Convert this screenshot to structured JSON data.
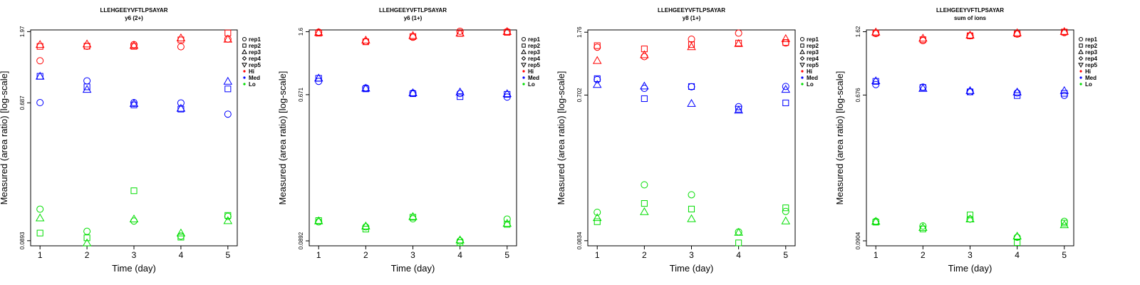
{
  "chart_data": [
    {
      "type": "scatter",
      "title": "LLEHGEEYVFTLPSAYAR",
      "subtitle": "y6 (2+)",
      "xlabel": "Time (day)",
      "ylabel": "Measured (area ratio) [log-scale]",
      "x_ticks": [
        "1",
        "2",
        "3",
        "4",
        "5"
      ],
      "y_ticks": [
        {
          "value": 0.0893,
          "label": "0.0893"
        },
        {
          "value": 0.687,
          "label": "0.687"
        },
        {
          "value": 1.97,
          "label": "1.97"
        }
      ],
      "ylim": [
        0.0828,
        2.02
      ],
      "log_scale": true,
      "legend": [
        {
          "label": "rep1",
          "symbol": "circle"
        },
        {
          "label": "rep2",
          "symbol": "square"
        },
        {
          "label": "rep3",
          "symbol": "triangle-up"
        },
        {
          "label": "rep4",
          "symbol": "diamond"
        },
        {
          "label": "rep5",
          "symbol": "triangle-down"
        },
        {
          "label": "Hi",
          "color": "#ff0000"
        },
        {
          "label": "Med",
          "color": "#0000ff"
        },
        {
          "label": "Lo",
          "color": "#00dd00"
        }
      ],
      "series": [
        {
          "name": "Hi rep1",
          "group": "Hi",
          "rep": "rep1",
          "x": [
            1,
            2,
            3,
            4,
            5
          ],
          "y": [
            1.28,
            1.585,
            1.626,
            1.575,
            1.764
          ]
        },
        {
          "name": "Hi rep2",
          "group": "Hi",
          "rep": "rep2",
          "x": [
            1,
            2,
            3,
            4,
            5
          ],
          "y": [
            1.583,
            1.588,
            1.584,
            1.743,
            1.931
          ]
        },
        {
          "name": "Hi rep3",
          "group": "Hi",
          "rep": "rep3",
          "x": [
            1,
            2,
            3,
            4,
            5
          ],
          "y": [
            1.626,
            1.64,
            1.607,
            1.793,
            1.76
          ]
        },
        {
          "name": "Med rep1",
          "group": "Med",
          "rep": "rep1",
          "x": [
            1,
            2,
            3,
            4,
            5
          ],
          "y": [
            0.689,
            0.951,
            0.689,
            0.686,
            0.581
          ]
        },
        {
          "name": "Med rep2",
          "group": "Med",
          "rep": "rep2",
          "x": [
            1,
            2,
            3,
            4,
            5
          ],
          "y": [
            1.017,
            0.87,
            0.666,
            0.626,
            0.844
          ]
        },
        {
          "name": "Med rep3",
          "group": "Med",
          "rep": "rep3",
          "x": [
            1,
            2,
            3,
            4,
            5
          ],
          "y": [
            1.017,
            0.837,
            0.68,
            0.633,
            0.944
          ]
        },
        {
          "name": "Lo rep1",
          "group": "Lo",
          "rep": "rep1",
          "x": [
            1,
            2,
            3,
            4,
            5
          ],
          "y": [
            0.1424,
            0.1026,
            0.1195,
            0.0957,
            0.128
          ]
        },
        {
          "name": "Lo rep2",
          "group": "Lo",
          "rep": "rep2",
          "x": [
            1,
            2,
            3,
            4,
            5
          ],
          "y": [
            0.1,
            0.0932,
            0.187,
            0.0941,
            0.1298
          ]
        },
        {
          "name": "Lo rep3",
          "group": "Lo",
          "rep": "rep3",
          "x": [
            1,
            2,
            3,
            4,
            5
          ],
          "y": [
            0.1249,
            0.0863,
            0.123,
            0.1,
            0.12
          ]
        }
      ]
    },
    {
      "type": "scatter",
      "title": "LLEHGEEYVFTLPSAYAR",
      "subtitle": "y6 (1+)",
      "xlabel": "Time (day)",
      "ylabel": "Measured (area ratio) [log-scale]",
      "x_ticks": [
        "1",
        "2",
        "3",
        "4",
        "5"
      ],
      "y_ticks": [
        {
          "value": 0.0892,
          "label": "0.0892"
        },
        {
          "value": 0.671,
          "label": "0.671"
        },
        {
          "value": 1.6,
          "label": "1.6"
        }
      ],
      "ylim": [
        0.0833,
        1.64
      ],
      "log_scale": true,
      "legend": [
        {
          "label": "rep1",
          "symbol": "circle"
        },
        {
          "label": "rep2",
          "symbol": "square"
        },
        {
          "label": "rep3",
          "symbol": "triangle-up"
        },
        {
          "label": "rep4",
          "symbol": "diamond"
        },
        {
          "label": "rep5",
          "symbol": "triangle-down"
        },
        {
          "label": "Hi",
          "color": "#ff0000"
        },
        {
          "label": "Med",
          "color": "#0000ff"
        },
        {
          "label": "Lo",
          "color": "#00dd00"
        }
      ],
      "series": [
        {
          "name": "Hi rep1",
          "group": "Hi",
          "rep": "rep1",
          "x": [
            1,
            2,
            3,
            4,
            5
          ],
          "y": [
            1.591,
            1.399,
            1.482,
            1.611,
            1.601
          ]
        },
        {
          "name": "Hi rep2",
          "group": "Hi",
          "rep": "rep2",
          "x": [
            1,
            2,
            3,
            4,
            5
          ],
          "y": [
            1.568,
            1.392,
            1.496,
            1.563,
            1.587
          ]
        },
        {
          "name": "Hi rep3",
          "group": "Hi",
          "rep": "rep3",
          "x": [
            1,
            2,
            3,
            4,
            5
          ],
          "y": [
            1.582,
            1.424,
            1.517,
            1.568,
            1.603
          ]
        },
        {
          "name": "Med rep1",
          "group": "Med",
          "rep": "rep1",
          "x": [
            1,
            2,
            3,
            4,
            5
          ],
          "y": [
            0.806,
            0.737,
            0.686,
            0.682,
            0.649
          ]
        },
        {
          "name": "Med rep2",
          "group": "Med",
          "rep": "rep2",
          "x": [
            1,
            2,
            3,
            4,
            5
          ],
          "y": [
            0.841,
            0.727,
            0.68,
            0.653,
            0.674
          ]
        },
        {
          "name": "Med rep3",
          "group": "Med",
          "rep": "rep3",
          "x": [
            1,
            2,
            3,
            4,
            5
          ],
          "y": [
            0.843,
            0.733,
            0.688,
            0.696,
            0.68
          ]
        },
        {
          "name": "Lo rep1",
          "group": "Lo",
          "rep": "rep1",
          "x": [
            1,
            2,
            3,
            4,
            5
          ],
          "y": [
            0.1159,
            0.1082,
            0.1209,
            0.0891,
            0.1205
          ]
        },
        {
          "name": "Lo rep2",
          "group": "Lo",
          "rep": "rep2",
          "x": [
            1,
            2,
            3,
            4,
            5
          ],
          "y": [
            0.118,
            0.1049,
            0.1236,
            0.087,
            0.112
          ]
        },
        {
          "name": "Lo rep3",
          "group": "Lo",
          "rep": "rep3",
          "x": [
            1,
            2,
            3,
            4,
            5
          ],
          "y": [
            0.1175,
            0.1094,
            0.1247,
            0.0903,
            0.1135
          ]
        }
      ]
    },
    {
      "type": "scatter",
      "title": "LLEHGEEYVFTLPSAYAR",
      "subtitle": "y8 (1+)",
      "xlabel": "Time (day)",
      "ylabel": "Measured (area ratio) [log-scale]",
      "x_ticks": [
        "1",
        "2",
        "3",
        "4",
        "5"
      ],
      "y_ticks": [
        {
          "value": 0.0834,
          "label": "0.0834"
        },
        {
          "value": 0.702,
          "label": "0.702"
        },
        {
          "value": 1.76,
          "label": "1.76"
        }
      ],
      "ylim": [
        0.0774,
        1.82
      ],
      "log_scale": true,
      "legend": [
        {
          "label": "rep1",
          "symbol": "circle"
        },
        {
          "label": "rep2",
          "symbol": "square"
        },
        {
          "label": "rep3",
          "symbol": "triangle-up"
        },
        {
          "label": "rep4",
          "symbol": "diamond"
        },
        {
          "label": "rep5",
          "symbol": "triangle-down"
        },
        {
          "label": "Hi",
          "color": "#ff0000"
        },
        {
          "label": "Med",
          "color": "#0000ff"
        },
        {
          "label": "Lo",
          "color": "#00dd00"
        }
      ],
      "series": [
        {
          "name": "Hi rep1",
          "group": "Hi",
          "rep": "rep1",
          "x": [
            1,
            2,
            3,
            4,
            5
          ],
          "y": [
            1.414,
            1.232,
            1.589,
            1.736,
            1.504
          ]
        },
        {
          "name": "Hi rep2",
          "group": "Hi",
          "rep": "rep2",
          "x": [
            1,
            2,
            3,
            4,
            5
          ],
          "y": [
            1.446,
            1.379,
            1.468,
            1.502,
            1.514
          ]
        },
        {
          "name": "Hi rep3",
          "group": "Hi",
          "rep": "rep3",
          "x": [
            1,
            2,
            3,
            4,
            5
          ],
          "y": [
            1.162,
            1.265,
            1.422,
            1.489,
            1.601
          ]
        },
        {
          "name": "Med rep1",
          "group": "Med",
          "rep": "rep1",
          "x": [
            1,
            2,
            3,
            4,
            5
          ],
          "y": [
            0.88,
            0.774,
            0.793,
            0.592,
            0.796
          ]
        },
        {
          "name": "Med rep2",
          "group": "Med",
          "rep": "rep2",
          "x": [
            1,
            2,
            3,
            4,
            5
          ],
          "y": [
            0.892,
            0.666,
            0.795,
            0.571,
            0.626
          ]
        },
        {
          "name": "Med rep3",
          "group": "Med",
          "rep": "rep3",
          "x": [
            1,
            2,
            3,
            4,
            5
          ],
          "y": [
            0.818,
            0.8,
            0.62,
            0.562,
            0.762
          ]
        },
        {
          "name": "Lo rep1",
          "group": "Lo",
          "rep": "rep1",
          "x": [
            1,
            2,
            3,
            4,
            5
          ],
          "y": [
            0.1263,
            0.1889,
            0.1633,
            0.0949,
            0.128
          ]
        },
        {
          "name": "Lo rep2",
          "group": "Lo",
          "rep": "rep2",
          "x": [
            1,
            2,
            3,
            4,
            5
          ],
          "y": [
            0.1101,
            0.1438,
            0.1325,
            0.0808,
            0.1349
          ]
        },
        {
          "name": "Lo rep3",
          "group": "Lo",
          "rep": "rep3",
          "x": [
            1,
            2,
            3,
            4,
            5
          ],
          "y": [
            0.1167,
            0.1273,
            0.1149,
            0.0941,
            0.1113
          ]
        }
      ]
    },
    {
      "type": "scatter",
      "title": "LLEHGEEYVFTLPSAYAR",
      "subtitle": "sum of ions",
      "xlabel": "Time (day)",
      "ylabel": "Measured (area ratio) [log-scale]",
      "x_ticks": [
        "1",
        "2",
        "3",
        "4",
        "5"
      ],
      "y_ticks": [
        {
          "value": 0.0904,
          "label": "0.0904"
        },
        {
          "value": 0.676,
          "label": "0.676"
        },
        {
          "value": 1.62,
          "label": "1.62"
        }
      ],
      "ylim": [
        0.0844,
        1.66
      ],
      "log_scale": true,
      "legend": [
        {
          "label": "rep1",
          "symbol": "circle"
        },
        {
          "label": "rep2",
          "symbol": "square"
        },
        {
          "label": "rep3",
          "symbol": "triangle-up"
        },
        {
          "label": "rep4",
          "symbol": "diamond"
        },
        {
          "label": "rep5",
          "symbol": "triangle-down"
        },
        {
          "label": "Hi",
          "color": "#ff0000"
        },
        {
          "label": "Med",
          "color": "#0000ff"
        },
        {
          "label": "Lo",
          "color": "#00dd00"
        }
      ],
      "series": [
        {
          "name": "Hi rep1",
          "group": "Hi",
          "rep": "rep1",
          "x": [
            1,
            2,
            3,
            4,
            5
          ],
          "y": [
            1.579,
            1.433,
            1.532,
            1.568,
            1.6
          ]
        },
        {
          "name": "Hi rep2",
          "group": "Hi",
          "rep": "rep2",
          "x": [
            1,
            2,
            3,
            4,
            5
          ],
          "y": [
            1.591,
            1.45,
            1.532,
            1.574,
            1.612
          ]
        },
        {
          "name": "Hi rep3",
          "group": "Hi",
          "rep": "rep3",
          "x": [
            1,
            2,
            3,
            4,
            5
          ],
          "y": [
            1.611,
            1.48,
            1.545,
            1.595,
            1.624
          ]
        },
        {
          "name": "Med rep1",
          "group": "Med",
          "rep": "rep1",
          "x": [
            1,
            2,
            3,
            4,
            5
          ],
          "y": [
            0.781,
            0.754,
            0.708,
            0.696,
            0.673
          ]
        },
        {
          "name": "Med rep2",
          "group": "Med",
          "rep": "rep2",
          "x": [
            1,
            2,
            3,
            4,
            5
          ],
          "y": [
            0.816,
            0.75,
            0.706,
            0.671,
            0.692
          ]
        },
        {
          "name": "Med rep3",
          "group": "Med",
          "rep": "rep3",
          "x": [
            1,
            2,
            3,
            4,
            5
          ],
          "y": [
            0.822,
            0.74,
            0.718,
            0.704,
            0.718
          ]
        },
        {
          "name": "Lo rep1",
          "group": "Lo",
          "rep": "rep1",
          "x": [
            1,
            2,
            3,
            4,
            5
          ],
          "y": [
            0.1183,
            0.111,
            0.1221,
            0.0949,
            0.1183
          ]
        },
        {
          "name": "Lo rep2",
          "group": "Lo",
          "rep": "rep2",
          "x": [
            1,
            2,
            3,
            4,
            5
          ],
          "y": [
            0.117,
            0.1065,
            0.1292,
            0.0882,
            0.1155
          ]
        },
        {
          "name": "Lo rep3",
          "group": "Lo",
          "rep": "rep3",
          "x": [
            1,
            2,
            3,
            4,
            5
          ],
          "y": [
            0.1183,
            0.1087,
            0.1221,
            0.0964,
            0.1127
          ]
        }
      ]
    }
  ],
  "colors": {
    "Hi": "#ff0000",
    "Med": "#0000ff",
    "Lo": "#00dd00",
    "axis": "#000000",
    "background": "#ffffff"
  }
}
